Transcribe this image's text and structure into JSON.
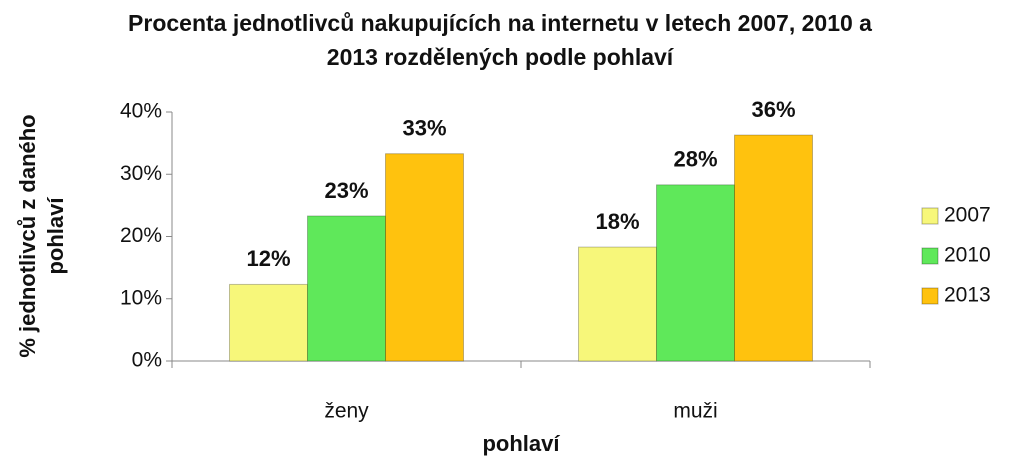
{
  "chart_data": {
    "type": "bar",
    "title": "Procenta jednotlivců nakupujících na internetu v letech 2007, 2010 a 2013 rozdělených podle pohlaví",
    "xlabel": "pohlaví",
    "ylabel": "% jednotlivců z daného pohlaví",
    "categories": [
      "ženy",
      "muži"
    ],
    "series": [
      {
        "name": "2007",
        "color": "#f7f77a",
        "values": [
          12.3,
          18.3
        ],
        "value_labels": [
          "12%",
          "18%"
        ]
      },
      {
        "name": "2010",
        "color": "#5fe85a",
        "values": [
          23.3,
          28.3
        ],
        "value_labels": [
          "23%",
          "28%"
        ]
      },
      {
        "name": "2013",
        "color": "#ffc20e",
        "values": [
          33.3,
          36.3
        ],
        "value_labels": [
          "33%",
          "36%"
        ]
      }
    ],
    "ylim": [
      0,
      40
    ],
    "yticks": [
      {
        "value": 0,
        "label": "0%"
      },
      {
        "value": 10,
        "label": "10%"
      },
      {
        "value": 20,
        "label": "20%"
      },
      {
        "value": 30,
        "label": "30%"
      },
      {
        "value": 40,
        "label": "40%"
      }
    ],
    "grid": false,
    "legend": "right"
  }
}
